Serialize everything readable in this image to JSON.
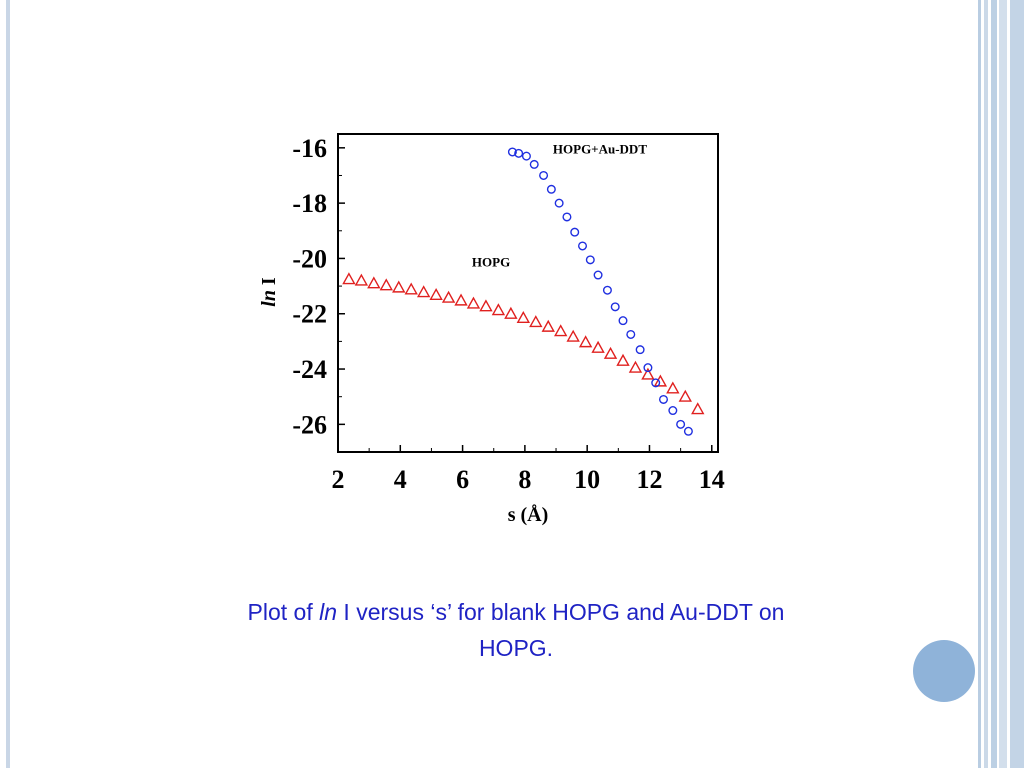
{
  "chart_data": {
    "type": "scatter",
    "xlabel": "s (Å)",
    "ylabel_italic": "ln",
    "ylabel_rest": " I",
    "xlim": [
      2,
      14.2
    ],
    "ylim": [
      -27,
      -15.5
    ],
    "x_ticks": [
      2,
      4,
      6,
      8,
      10,
      12,
      14
    ],
    "y_ticks": [
      -16,
      -18,
      -20,
      -22,
      -24,
      -26
    ],
    "grid": false,
    "series": [
      {
        "name": "HOPG",
        "marker": "triangle",
        "color": "#e0201f",
        "x": [
          2.35,
          2.75,
          3.15,
          3.55,
          3.95,
          4.35,
          4.75,
          5.15,
          5.55,
          5.95,
          6.35,
          6.75,
          7.15,
          7.55,
          7.95,
          8.35,
          8.75,
          9.15,
          9.55,
          9.95,
          10.35,
          10.75,
          11.15,
          11.55,
          11.95,
          12.35,
          12.75,
          13.15,
          13.55
        ],
        "y": [
          -20.75,
          -20.8,
          -20.9,
          -20.97,
          -21.05,
          -21.12,
          -21.22,
          -21.32,
          -21.42,
          -21.52,
          -21.63,
          -21.73,
          -21.87,
          -22.0,
          -22.15,
          -22.3,
          -22.47,
          -22.63,
          -22.83,
          -23.03,
          -23.23,
          -23.45,
          -23.7,
          -23.95,
          -24.2,
          -24.45,
          -24.7,
          -25.0,
          -25.45
        ]
      },
      {
        "name": "HOPG+Au-DDT",
        "marker": "circle",
        "color": "#1f2fe0",
        "x": [
          7.6,
          7.8,
          8.05,
          8.3,
          8.6,
          8.85,
          9.1,
          9.35,
          9.6,
          9.85,
          10.1,
          10.35,
          10.65,
          10.9,
          11.15,
          11.4,
          11.7,
          11.95,
          12.2,
          12.45,
          12.75,
          13.0,
          13.25
        ],
        "y": [
          -16.15,
          -16.2,
          -16.3,
          -16.6,
          -17.0,
          -17.5,
          -18.0,
          -18.5,
          -19.05,
          -19.55,
          -20.05,
          -20.6,
          -21.15,
          -21.75,
          -22.25,
          -22.75,
          -23.3,
          -23.95,
          -24.5,
          -25.1,
          -25.5,
          -26.0,
          -26.25
        ]
      }
    ],
    "annotations": {
      "hopg": {
        "text": "HOPG",
        "x": 6.3,
        "y": -20.3
      },
      "au": {
        "text": "HOPG+Au-DDT",
        "x": 8.9,
        "y": -16.2
      }
    }
  },
  "caption": {
    "prefix": "Plot of ",
    "italic": "ln",
    "rest": " I versus ‘s’ for blank HOPG and Au-DDT  on HOPG."
  },
  "colors": {
    "caption": "#1f23c4",
    "decor_circle": "#8fb3d9"
  }
}
